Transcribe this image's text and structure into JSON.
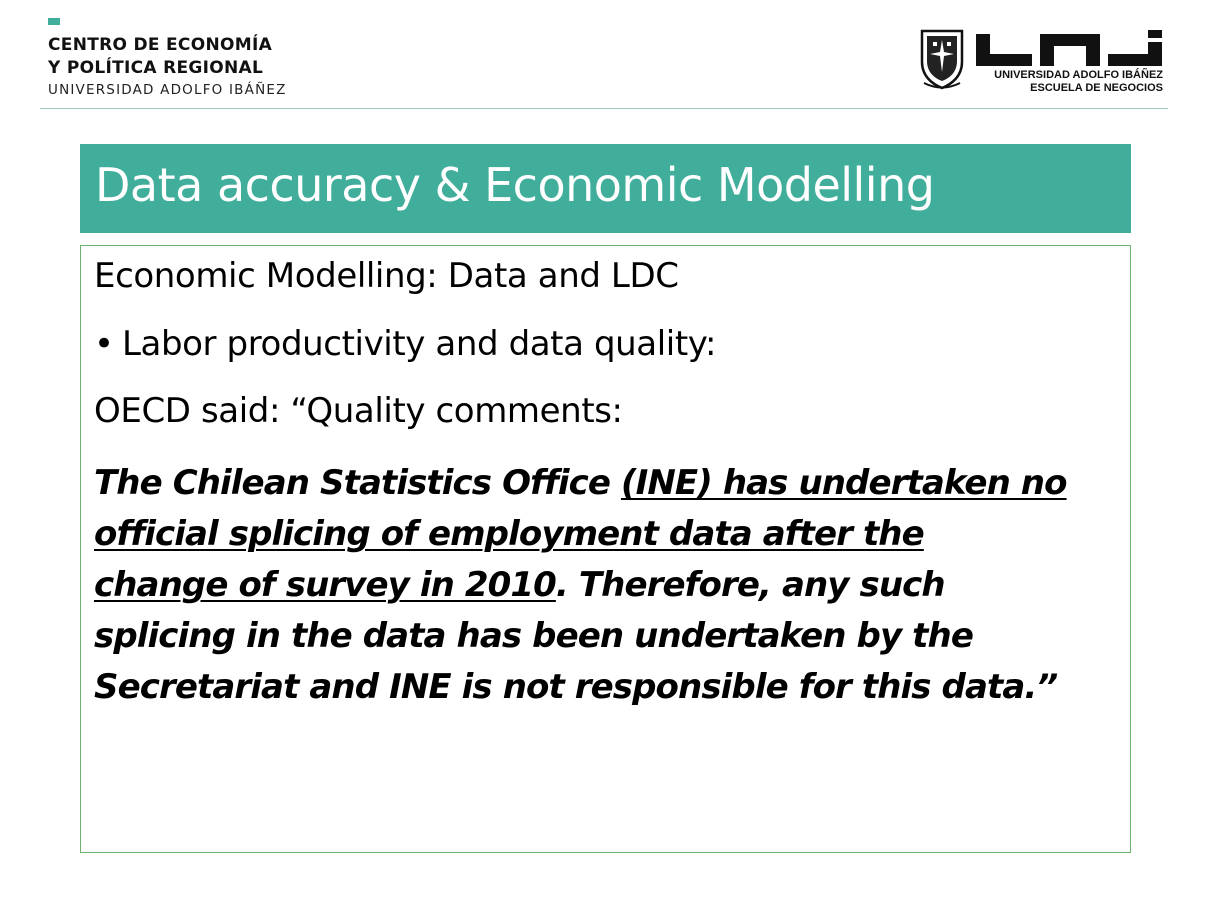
{
  "header": {
    "centre_line_1": "CENTRO DE ECONOMÍA",
    "centre_line_2": "Y POLÍTICA REGIONAL",
    "centre_sub": "UNIVERSIDAD ADOLFO IBÁÑEZ",
    "uai_line_1": "UNIVERSIDAD ADOLFO IBÁÑEZ",
    "uai_line_2": "ESCUELA DE NEGOCIOS",
    "accent_color": "#41ae9c"
  },
  "slide": {
    "title": "Data accuracy & Economic Modelling",
    "subtitle": "Economic Modelling: Data and LDC",
    "bullet_marker": "•",
    "bullet_text": "Labor productivity and data quality:",
    "oecd_line": "OECD said: “Quality comments:",
    "quote": {
      "l1_plain": "The Chilean Statistics Office ",
      "l1_underlined": "(INE) has undertaken no",
      "l2_underlined": "official splicing of employment data after the",
      "l3_underlined": "change of survey in 2010",
      "l3_plain": ". Therefore, any such",
      "l4_plain": "splicing in the data has been undertaken by the",
      "l5_plain": "Secretariat and INE is not responsible for this data.”"
    }
  }
}
